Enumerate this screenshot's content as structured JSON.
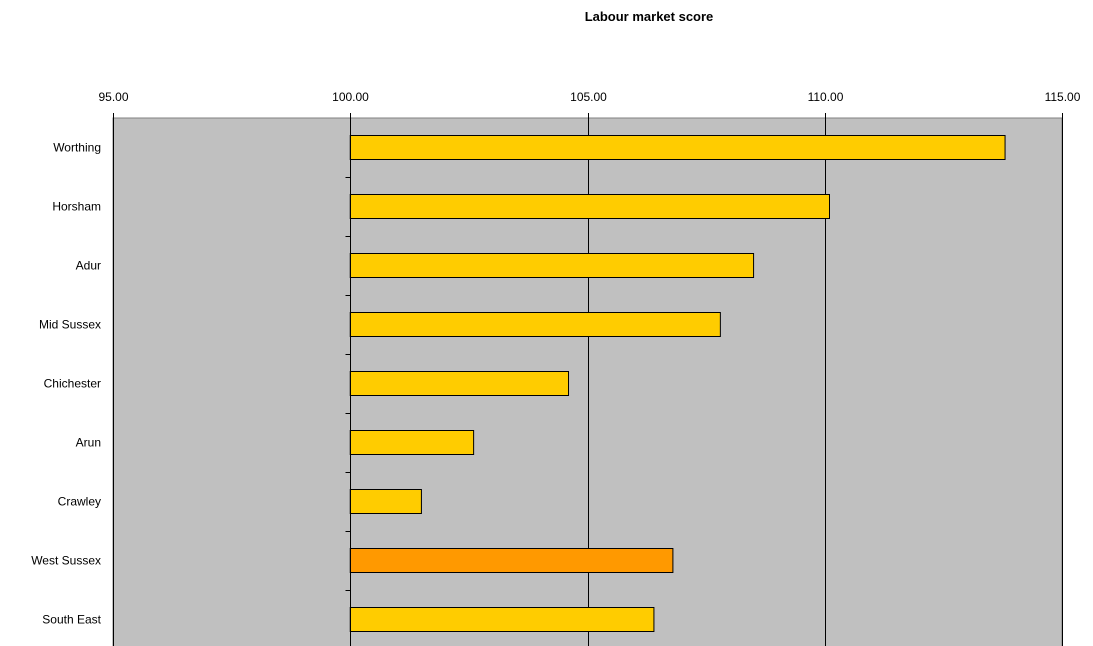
{
  "chart_data": {
    "type": "bar",
    "orientation": "horizontal",
    "title": "Labour market score",
    "xlabel": "",
    "ylabel": "",
    "xlim": [
      95,
      115
    ],
    "x_ticks": [
      "95.00",
      "100.00",
      "105.00",
      "110.00",
      "115.00"
    ],
    "x_axis_position": "top",
    "baseline": 100,
    "categories": [
      "Worthing",
      "Horsham",
      "Adur",
      "Mid Sussex",
      "Chichester",
      "Arun",
      "Crawley",
      "West Sussex",
      "South East"
    ],
    "values": [
      113.8,
      110.1,
      108.5,
      107.8,
      104.6,
      102.6,
      101.5,
      106.8,
      106.4
    ],
    "bar_colors": [
      "#FFCC00",
      "#FFCC00",
      "#FFCC00",
      "#FFCC00",
      "#FFCC00",
      "#FFCC00",
      "#FFCC00",
      "#FF9900",
      "#FFCC00"
    ],
    "plot_background": "#C0C0C0",
    "gridlines": true,
    "legend": "none"
  }
}
